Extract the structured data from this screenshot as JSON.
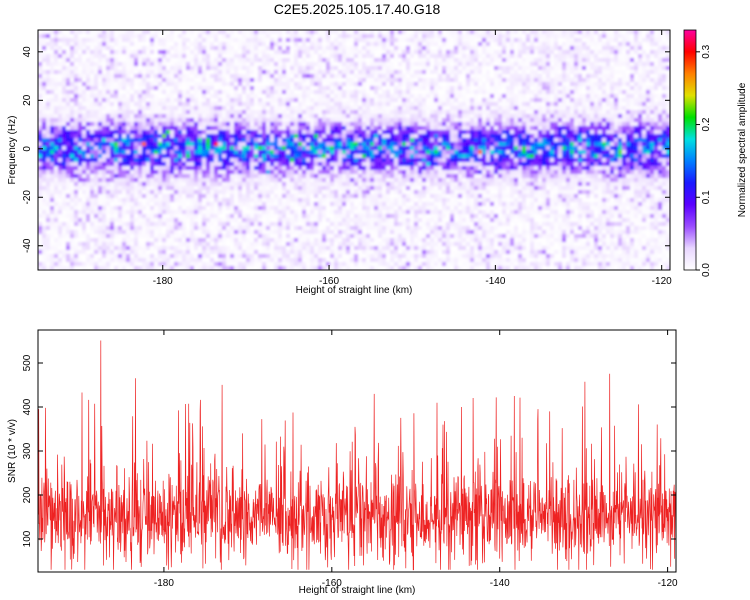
{
  "title": "C2E5.2025.105.17.40.G18",
  "chart_data": [
    {
      "type": "heatmap",
      "xlabel": "Height of straight line (km)",
      "ylabel": "Frequency (Hz)",
      "xlim": [
        -195,
        -119
      ],
      "ylim": [
        -50,
        49
      ],
      "xticks": [
        -180,
        -160,
        -140,
        -120
      ],
      "xtick_labels": [
        "-180",
        "-160",
        "-140",
        "-120"
      ],
      "yticks": [
        -40,
        -20,
        0,
        20,
        40
      ],
      "ytick_labels": [
        "-40",
        "-20",
        "0",
        "20",
        "40"
      ],
      "colorbar": {
        "label": "Normalized spectral amplitude",
        "range": [
          0,
          0.33
        ],
        "ticks": [
          0,
          0.1,
          0.2,
          0.3
        ],
        "tick_labels": [
          "0.0",
          "0.1",
          "0.2",
          "0.3"
        ],
        "colormap": [
          "#ffffff",
          "#e8d6ff",
          "#9b4dff",
          "#5a00ff",
          "#1a1aff",
          "#0080ff",
          "#00e0e0",
          "#00e000",
          "#e0e000",
          "#ff8000",
          "#ff0000",
          "#ff00a0"
        ]
      },
      "description_values": {
        "band_center_hz": 0,
        "band_halfwidth_hz": 8,
        "peak_amplitude": 0.33
      }
    },
    {
      "type": "line",
      "xlabel": "Height of straight line (km)",
      "ylabel": "SNR (10 * v/v)",
      "xlim": [
        -195,
        -119
      ],
      "ylim": [
        25,
        575
      ],
      "xticks": [
        -180,
        -160,
        -140,
        -120
      ],
      "xtick_labels": [
        "-180",
        "-160",
        "-140",
        "-120"
      ],
      "yticks": [
        100,
        200,
        300,
        400,
        500
      ],
      "ytick_labels": [
        "100",
        "200",
        "300",
        "400",
        "500"
      ],
      "series": [
        {
          "color": "#ee2222",
          "typical_mean": 150,
          "typical_min": 30,
          "max": 575
        }
      ]
    }
  ]
}
